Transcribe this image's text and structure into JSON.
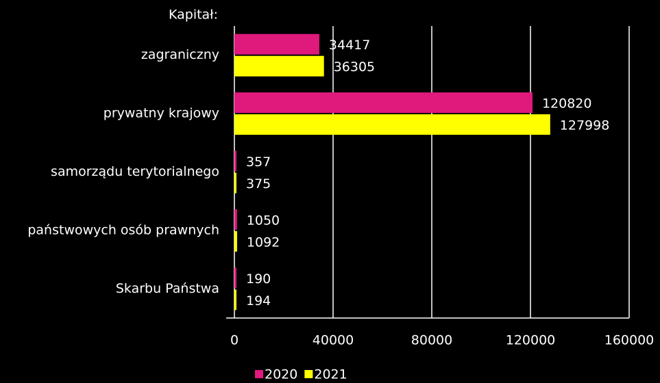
{
  "chart_data": {
    "type": "hbar",
    "axis_title": "Kapitał:",
    "categories": [
      "zagraniczny",
      "prywatny krajowy",
      "samorządu terytorialnego",
      "państwowych osób prawnych",
      "Skarbu Państwa"
    ],
    "series": [
      {
        "name": "2020",
        "color": "#e0197d",
        "values": [
          34417,
          120820,
          357,
          1050,
          190
        ]
      },
      {
        "name": "2021",
        "color": "#ffff00",
        "values": [
          36305,
          127998,
          375,
          1092,
          194
        ]
      }
    ],
    "xlim": [
      0,
      160000
    ],
    "xticks": [
      0,
      40000,
      80000,
      120000,
      160000
    ],
    "grid": true,
    "legend": "bottom"
  }
}
